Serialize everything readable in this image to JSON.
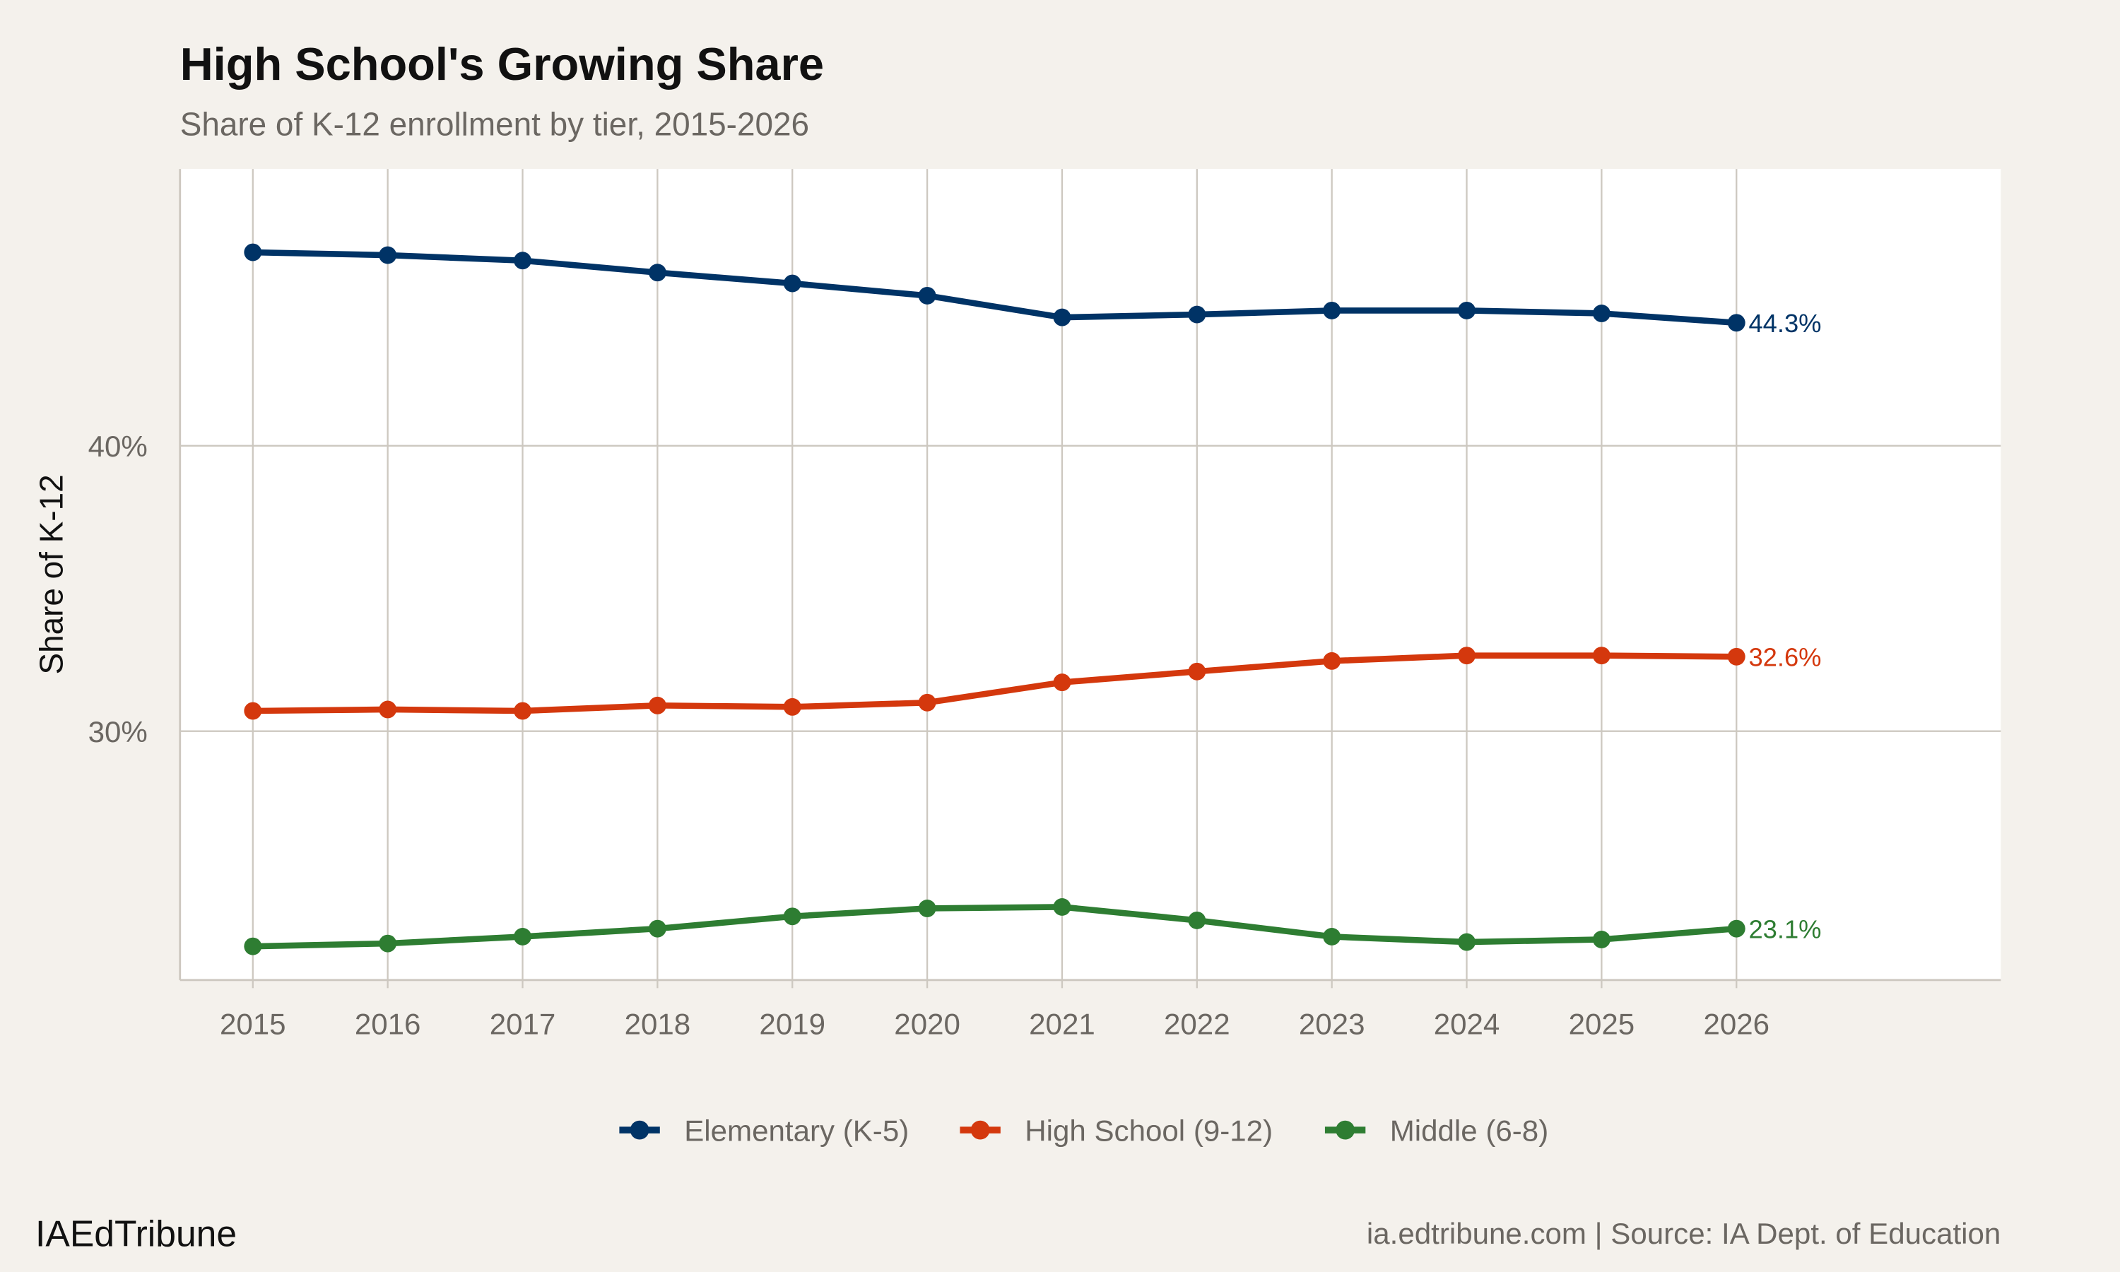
{
  "title": "High School's Growing Share",
  "subtitle": "Share of K-12 enrollment by tier, 2015-2026",
  "brand": "IAEdTribune",
  "caption": "ia.edtribune.com | Source: IA Dept. of Education",
  "colors": {
    "background": "#f4f1ec",
    "panel": "#ffffff",
    "grid": "#cdc8c0",
    "text": "#6b6762"
  },
  "chart_data": {
    "type": "line",
    "title": "High School's Growing Share",
    "subtitle": "Share of K-12 enrollment by tier, 2015-2026",
    "xlabel": "",
    "ylabel": "Share of K-12",
    "x": [
      2015,
      2016,
      2017,
      2018,
      2019,
      2020,
      2021,
      2022,
      2023,
      2024,
      2025,
      2026
    ],
    "x_tick_labels": [
      "2015",
      "2016",
      "2017",
      "2018",
      "2019",
      "2020",
      "2021",
      "2022",
      "2023",
      "2024",
      "2025",
      "2026"
    ],
    "y_ticks": [
      30,
      40
    ],
    "y_tick_labels": [
      "30%",
      "40%"
    ],
    "xlim": [
      2014.46,
      2027.96
    ],
    "ylim": [
      21.28,
      49.7
    ],
    "grid": true,
    "legend_position": "bottom",
    "series": [
      {
        "name": "Elementary (K-5)",
        "color": "#003366",
        "end_label": "44.3%",
        "values": [
          46.78,
          46.68,
          46.49,
          46.07,
          45.69,
          45.26,
          44.5,
          44.6,
          44.74,
          44.74,
          44.64,
          44.31
        ]
      },
      {
        "name": "High School (9-12)",
        "color": "#d4380d",
        "end_label": "32.6%",
        "values": [
          30.71,
          30.76,
          30.71,
          30.9,
          30.85,
          31.0,
          31.71,
          32.09,
          32.46,
          32.65,
          32.65,
          32.61
        ]
      },
      {
        "name": "Middle (6-8)",
        "color": "#2e7d32",
        "end_label": "23.1%",
        "values": [
          22.46,
          22.56,
          22.8,
          23.08,
          23.51,
          23.79,
          23.84,
          23.37,
          22.8,
          22.61,
          22.7,
          23.08
        ]
      }
    ]
  }
}
